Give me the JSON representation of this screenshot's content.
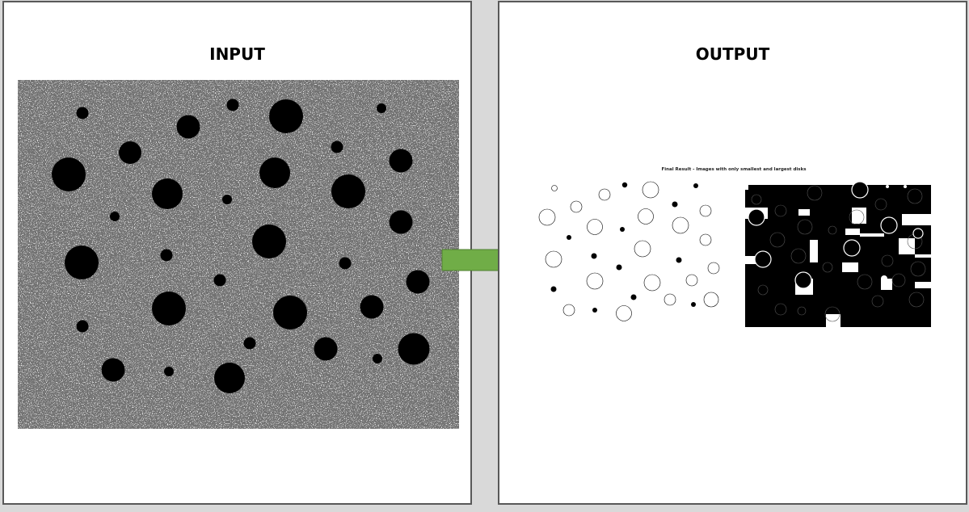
{
  "input_panel": {
    "title": "INPUT"
  },
  "output_panel": {
    "title": "OUTPUT",
    "result_caption": "Final Result - Images with only smallest and largest disks"
  },
  "colors": {
    "background": "#d9d9d9",
    "panel_border": "#595959",
    "arrow_fill": "#70ad47",
    "arrow_stroke": "#507e32",
    "disk": "#000000"
  },
  "icons": {
    "arrow": "right-arrow-icon"
  }
}
